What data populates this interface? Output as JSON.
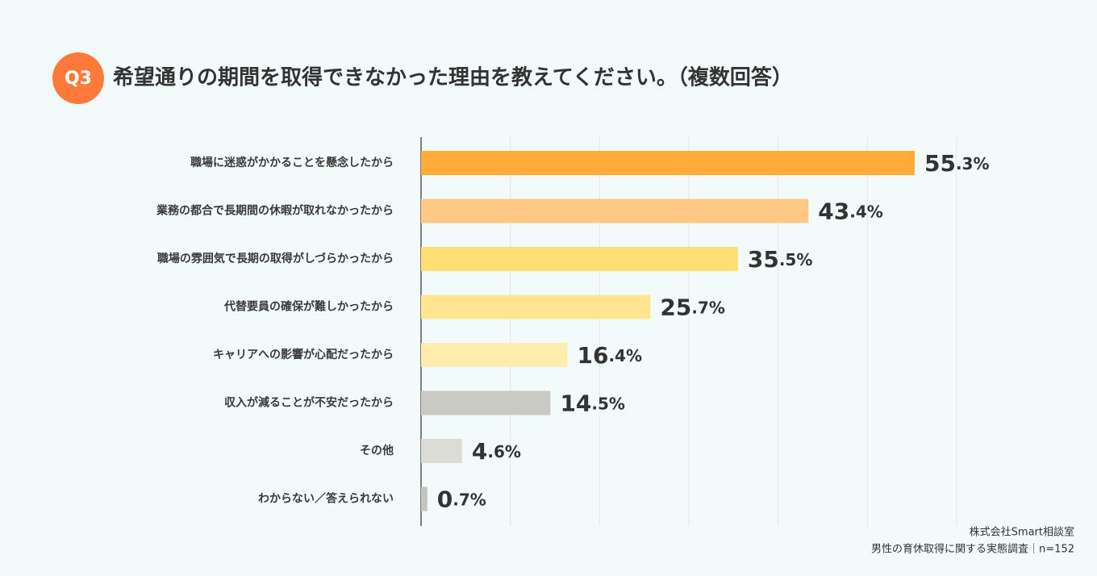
{
  "chart_data": {
    "type": "hbar",
    "badge": "Q3",
    "title": "希望通りの期間を取得できなかった理由を教えてください。（複数回答）",
    "categories": [
      "職場に迷惑がかかることを懸念したから",
      "業務の都合で長期間の休暇が取れなかったから",
      "職場の雰囲気で長期の取得がしづらかったから",
      "代替要員の確保が難しかったから",
      "キャリアへの影響が心配だったから",
      "収入が減ることが不安だったから",
      "その他",
      "わからない／答えられない"
    ],
    "values": [
      55.3,
      43.4,
      35.5,
      25.7,
      16.4,
      14.5,
      4.6,
      0.7
    ],
    "value_labels": [
      "55.3%",
      "43.4%",
      "35.5%",
      "25.7%",
      "16.4%",
      "14.5%",
      "4.6%",
      "0.7%"
    ],
    "colors": [
      "#ffab36",
      "#ffc985",
      "#ffdf73",
      "#ffe58f",
      "#ffedae",
      "#cbc9c3",
      "#dcdcd7",
      "#c4c3bd"
    ],
    "xlim": [
      0,
      60
    ],
    "xticks": [
      0,
      10,
      20,
      30,
      40,
      50,
      60
    ],
    "grid": true,
    "source": [
      "株式会社Smart相談室",
      "男性の育休取得に関する実態調査｜n=152"
    ]
  }
}
